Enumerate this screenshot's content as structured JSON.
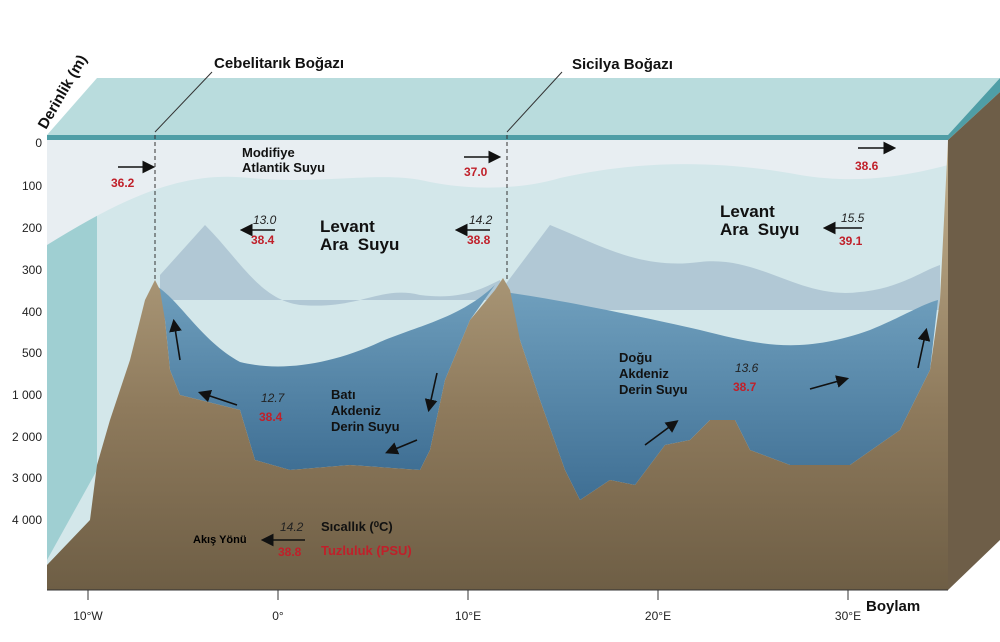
{
  "axis": {
    "y_label": "Derinlik (m)",
    "depth_ticks": [
      "0",
      "100",
      "200",
      "300",
      "400",
      "500",
      "1 000",
      "2 000",
      "3 000",
      "4 000"
    ],
    "x_ticks": [
      "10°W",
      "0°",
      "10°E",
      "20°E",
      "30°E"
    ],
    "x_label": "Boylam"
  },
  "straits": [
    "Cebelitarık Boğazı",
    "Sicilya Boğazı"
  ],
  "water_masses": [
    {
      "lines": [
        "Modifiye",
        "Atlantik Suyu"
      ]
    },
    {
      "lines": [
        "Levant",
        "Ara  Suyu"
      ]
    },
    {
      "lines": [
        "Levant",
        "Ara  Suyu"
      ]
    },
    {
      "lines": [
        "Batı",
        "Akdeniz",
        "Derin Suyu"
      ]
    },
    {
      "lines": [
        "Doğu",
        "Akdeniz",
        "Derin Suyu"
      ]
    }
  ],
  "readings": [
    {
      "salinity": "36.2"
    },
    {
      "salinity": "37.0"
    },
    {
      "salinity": "38.6"
    },
    {
      "temperature": "13.0",
      "salinity": "38.4"
    },
    {
      "temperature": "14.2",
      "salinity": "38.8"
    },
    {
      "temperature": "15.5",
      "salinity": "39.1"
    },
    {
      "temperature": "12.7",
      "salinity": "38.4"
    },
    {
      "temperature": "13.6",
      "salinity": "38.7"
    }
  ],
  "legend": {
    "flow": "Akış Yönü",
    "temperature": "14.2",
    "salinity": "38.8",
    "temperature_label": "Sıcallık (⁰C)",
    "salinity_label": "Tuzluluk (PSU)"
  }
}
